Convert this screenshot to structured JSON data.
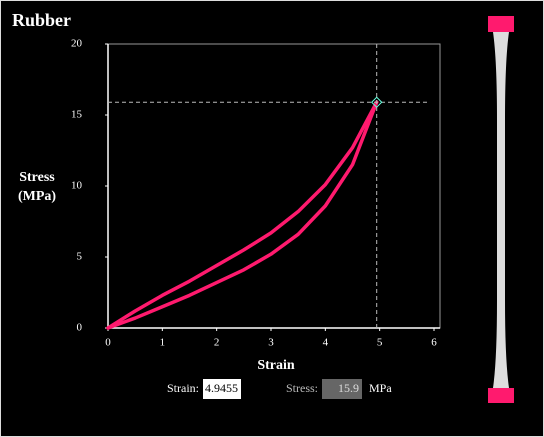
{
  "chart_data": {
    "type": "line",
    "title": "Rubber",
    "x_label": "Strain",
    "y_label": [
      "Stress",
      "(MPa)"
    ],
    "xlim": [
      0,
      6
    ],
    "ylim": [
      0,
      20
    ],
    "xticks": [
      0,
      1,
      2,
      3,
      4,
      5,
      6
    ],
    "yticks": [
      0,
      5,
      10,
      15,
      20
    ],
    "series": [
      {
        "color": "#ff1a6e",
        "x": [
          0,
          0.5,
          1,
          1.5,
          2,
          2.5,
          3,
          3.5,
          4,
          4.5,
          4.9455
        ],
        "values": [
          0,
          1.2,
          2.3,
          3.3,
          4.4,
          5.5,
          6.7,
          8.2,
          10.1,
          12.7,
          15.9
        ]
      },
      {
        "color": "#ff1a6e",
        "x": [
          0,
          0.5,
          1,
          1.5,
          2,
          2.5,
          3,
          3.5,
          4,
          4.5,
          4.9455
        ],
        "values": [
          0,
          0.7,
          1.5,
          2.3,
          3.2,
          4.1,
          5.2,
          6.6,
          8.6,
          11.5,
          15.9
        ]
      }
    ]
  },
  "readout": {
    "strain": {
      "label": "Strain:",
      "value": 4.9455
    },
    "stress": {
      "label": "Stress:",
      "value": 15.9,
      "unit": "MPa"
    }
  }
}
